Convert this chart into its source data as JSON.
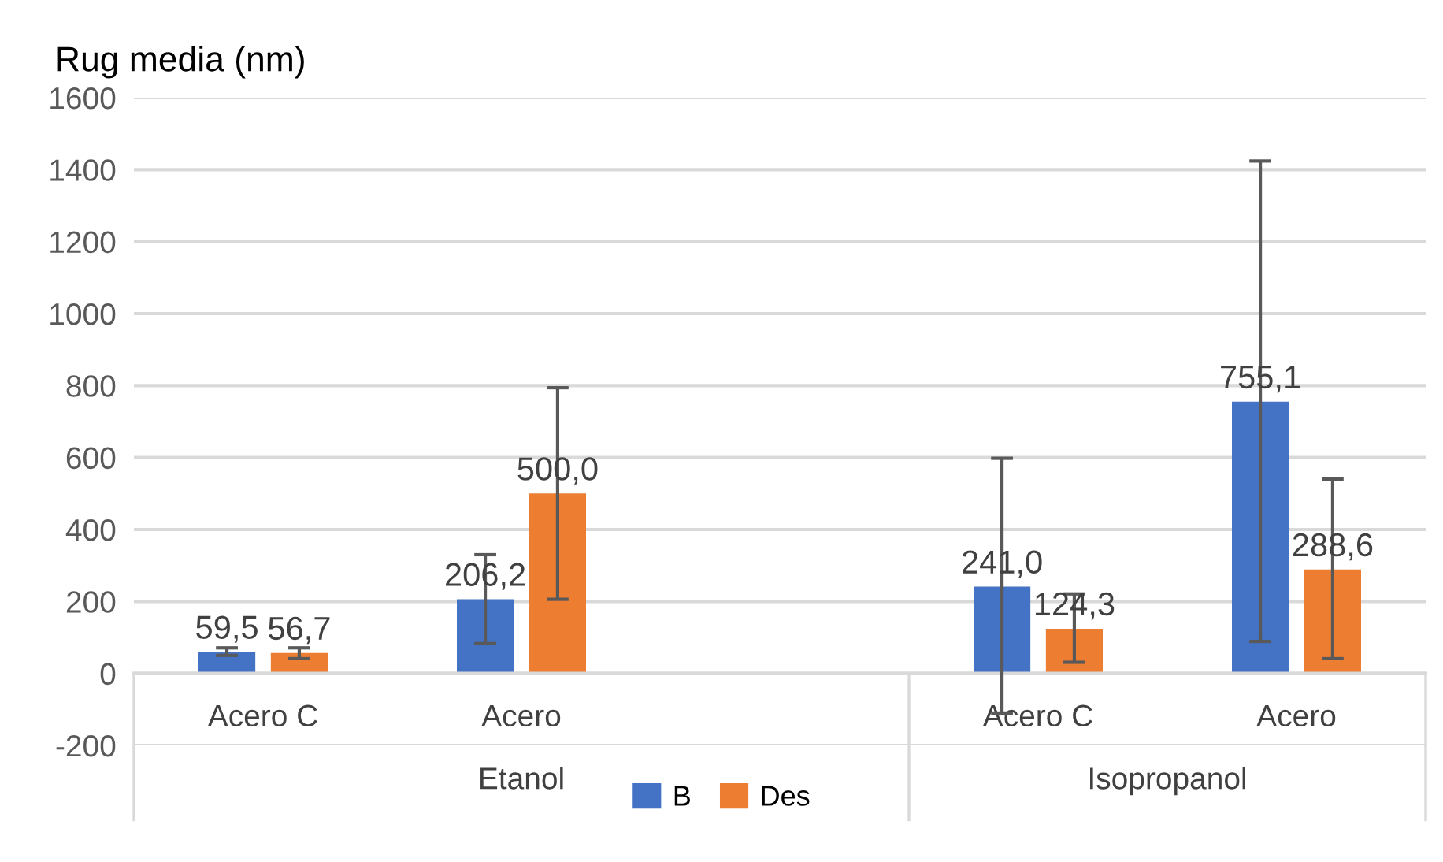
{
  "chart_data": {
    "type": "bar",
    "ylabel": "Rug media (nm)",
    "categories": [
      "Acero C",
      "Acero",
      null,
      "Acero C",
      "Acero"
    ],
    "series": [
      {
        "name": "B",
        "color": "#4472c4",
        "values": [
          59.5,
          206.2,
          null,
          241.0,
          755.1
        ],
        "value_labels": [
          "59,5",
          "206,2",
          null,
          "241,0",
          "755,1"
        ],
        "errors": [
          [
            50,
            71
          ],
          [
            83,
            330
          ],
          null,
          [
            -110,
            598
          ],
          [
            89,
            1424
          ]
        ]
      },
      {
        "name": "Des",
        "color": "#ed7d31",
        "values": [
          56.7,
          500.0,
          null,
          124.3,
          288.6
        ],
        "value_labels": [
          "56,7",
          "500,0",
          null,
          "124,3",
          "288,6"
        ],
        "errors": [
          [
            41,
            71
          ],
          [
            206,
            794
          ],
          null,
          [
            31,
            221
          ],
          [
            41,
            540
          ]
        ]
      }
    ],
    "annotations": [
      "Etanol",
      "Isopropanol"
    ],
    "ylim": [
      -200,
      1600
    ],
    "yticks": [
      -200,
      0,
      200,
      400,
      600,
      800,
      1000,
      1200,
      1400,
      1600
    ],
    "grid": "y",
    "legend": "bottom"
  }
}
